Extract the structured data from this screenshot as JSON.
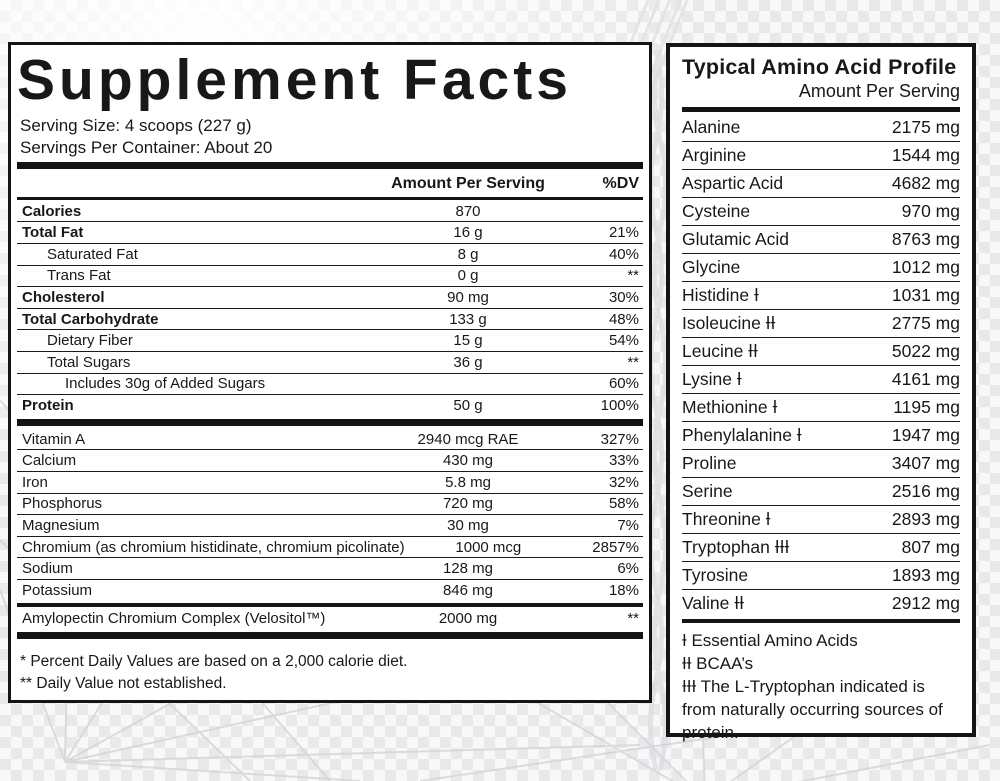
{
  "colors": {
    "panel_bg": "#ffffff",
    "ink": "#1a1718",
    "page_bg": "#efeff1",
    "border": "#151314"
  },
  "supplement_facts": {
    "title": "Supplement Facts",
    "serving_size": "Serving Size: 4 scoops (227 g)",
    "servings_per_container": "Servings Per Container: About 20",
    "col_amount": "Amount Per Serving",
    "col_dv": "%DV",
    "rows": [
      {
        "label": "Calories",
        "amount": "870",
        "dv": "",
        "bold": true
      },
      {
        "label": "Total Fat",
        "amount": "16 g",
        "dv": "21%",
        "bold": true
      },
      {
        "label": "Saturated Fat",
        "amount": "8 g",
        "dv": "40%",
        "indent": 1
      },
      {
        "label": "Trans Fat",
        "amount": "0 g",
        "dv": "**",
        "indent": 1
      },
      {
        "label": "Cholesterol",
        "amount": "90 mg",
        "dv": "30%",
        "bold": true
      },
      {
        "label": "Total Carbohydrate",
        "amount": "133 g",
        "dv": "48%",
        "bold": true
      },
      {
        "label": "Dietary Fiber",
        "amount": "15 g",
        "dv": "54%",
        "indent": 1
      },
      {
        "label": "Total Sugars",
        "amount": "36 g",
        "dv": "**",
        "indent": 1
      },
      {
        "label": "Includes 30g of Added Sugars",
        "amount": "",
        "dv": "60%",
        "indent": 2
      },
      {
        "label": "Protein",
        "amount": "50 g",
        "dv": "100%",
        "bold": true
      },
      {
        "bar": "thick"
      },
      {
        "label": "Vitamin A",
        "amount": "2940 mcg RAE",
        "dv": "327%"
      },
      {
        "label": "Calcium",
        "amount": "430 mg",
        "dv": "33%"
      },
      {
        "label": "Iron",
        "amount": "5.8 mg",
        "dv": "32%"
      },
      {
        "label": "Phosphorus",
        "amount": "720 mg",
        "dv": "58%"
      },
      {
        "label": "Magnesium",
        "amount": "30 mg",
        "dv": "7%"
      },
      {
        "label": "Chromium (as chromium histidinate, chromium picolinate)",
        "amount": "1000 mcg",
        "dv": "2857%"
      },
      {
        "label": "Sodium",
        "amount": "128 mg",
        "dv": "6%"
      },
      {
        "label": "Potassium",
        "amount": "846 mg",
        "dv": "18%"
      },
      {
        "bar": "medium"
      },
      {
        "label": "Amylopectin Chromium Complex (Velositol™)",
        "amount": "2000 mg",
        "dv": "**"
      },
      {
        "bar": "thick"
      }
    ],
    "footnotes": [
      "* Percent Daily Values are based on a 2,000 calorie diet.",
      "** Daily Value not established."
    ]
  },
  "amino_profile": {
    "title": "Typical Amino Acid Profile",
    "subtitle": "Amount Per Serving",
    "rows": [
      {
        "name": "Alanine",
        "amount": "2175 mg"
      },
      {
        "name": "Arginine",
        "amount": "1544 mg"
      },
      {
        "name": "Aspartic Acid",
        "amount": "4682 mg"
      },
      {
        "name": "Cysteine",
        "amount": "970 mg"
      },
      {
        "name": "Glutamic Acid",
        "amount": "8763 mg"
      },
      {
        "name": "Glycine",
        "amount": "1012 mg"
      },
      {
        "name": "Histidine Ɨ",
        "amount": "1031 mg"
      },
      {
        "name": "Isoleucine ƗƗ",
        "amount": "2775 mg"
      },
      {
        "name": "Leucine ƗƗ",
        "amount": "5022 mg"
      },
      {
        "name": "Lysine Ɨ",
        "amount": "4161 mg"
      },
      {
        "name": "Methionine Ɨ",
        "amount": "1195 mg"
      },
      {
        "name": "Phenylalanine Ɨ",
        "amount": "1947 mg"
      },
      {
        "name": "Proline",
        "amount": "3407 mg"
      },
      {
        "name": "Serine",
        "amount": "2516 mg"
      },
      {
        "name": "Threonine Ɨ",
        "amount": "2893 mg"
      },
      {
        "name": "Tryptophan ƗƗƗ",
        "amount": "807 mg"
      },
      {
        "name": "Tyrosine",
        "amount": "1893 mg"
      },
      {
        "name": "Valine ƗƗ",
        "amount": "2912 mg"
      }
    ],
    "footnotes": [
      "Ɨ Essential Amino Acids",
      "ƗƗ BCAA’s",
      "ƗƗƗ The L-Tryptophan indicated is from naturally occurring sources of protein."
    ]
  }
}
